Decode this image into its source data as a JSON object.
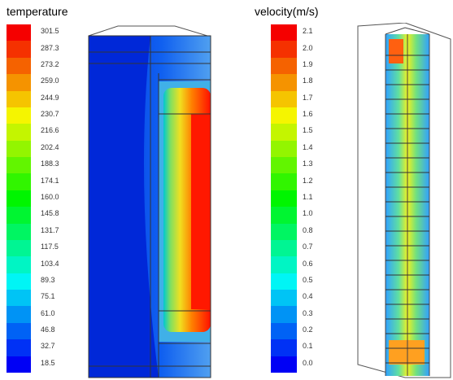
{
  "panels": [
    {
      "title": "temperature",
      "labels": [
        "301.5",
        "287.3",
        "273.2",
        "259.0",
        "244.9",
        "230.7",
        "216.6",
        "202.4",
        "188.3",
        "174.1",
        "160.0",
        "145.8",
        "131.7",
        "117.5",
        "103.4",
        "89.3",
        "75.1",
        "61.0",
        "46.8",
        "32.7",
        "18.5"
      ]
    },
    {
      "title": "velocity(m/s)",
      "labels": [
        "2.1",
        "2.0",
        "1.9",
        "1.8",
        "1.7",
        "1.6",
        "1.5",
        "1.4",
        "1.3",
        "1.2",
        "1.1",
        "1.0",
        "0.8",
        "0.7",
        "0.6",
        "0.5",
        "0.4",
        "0.3",
        "0.2",
        "0.1",
        "0.0"
      ]
    }
  ]
}
